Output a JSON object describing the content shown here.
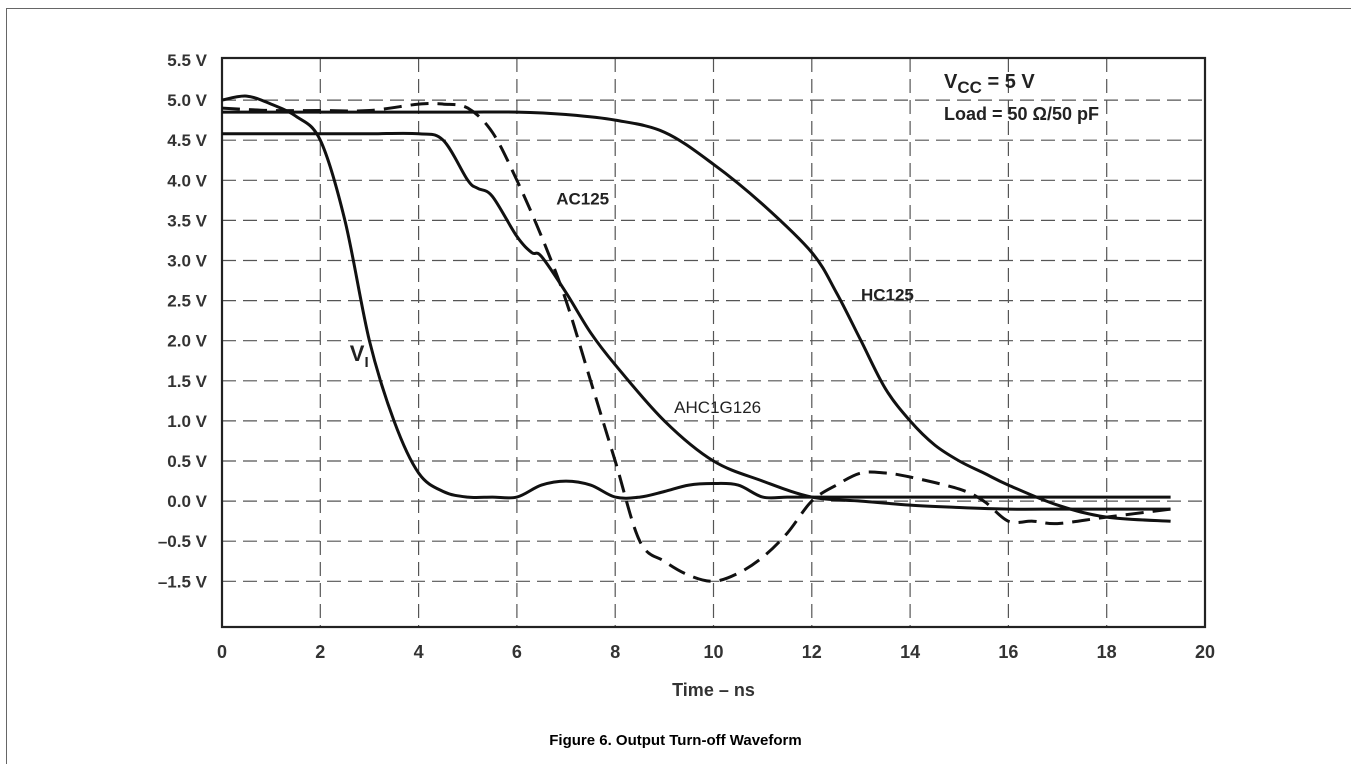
{
  "caption": "Figure 6. Output Turn-off Waveform",
  "chart_data": {
    "type": "line",
    "xlabel": "Time – ns",
    "ylabel": "",
    "xlim": [
      0,
      20
    ],
    "x_ticks": [
      "0",
      "2",
      "4",
      "6",
      "8",
      "10",
      "12",
      "14",
      "16",
      "18",
      "20"
    ],
    "y_ticks": [
      "5.5 V",
      "5.0 V",
      "4.5 V",
      "4.0 V",
      "3.5 V",
      "3.0 V",
      "2.5 V",
      "2.0 V",
      "1.5 V",
      "1.0 V",
      "0.5 V",
      "0.0 V",
      "–0.5 V",
      "–1.5 V"
    ],
    "y_tick_values": [
      5.5,
      5.0,
      4.5,
      4.0,
      3.5,
      3.0,
      2.5,
      2.0,
      1.5,
      1.0,
      0.5,
      0.0,
      -0.5,
      -1.5
    ],
    "grid": true,
    "conditions": {
      "vcc_prefix": "V",
      "vcc_sub": "CC",
      "vcc_suffix": " = 5 V",
      "load": "Load = 50 Ω/50 pF"
    },
    "series": [
      {
        "name": "VI",
        "label_main": "V",
        "label_sub": "I",
        "style": "solid",
        "x": [
          0,
          0.5,
          1.0,
          1.5,
          2.0,
          2.5,
          3.0,
          3.5,
          4.0,
          4.5,
          5.0,
          5.5,
          6.0,
          6.5,
          7.0,
          7.5,
          8.0,
          8.5,
          9.0,
          9.5,
          10.0,
          10.5,
          11.0,
          11.5,
          12.0,
          13.0,
          14.0,
          15.0,
          16.0,
          17.0,
          18.0,
          19.3
        ],
        "y": [
          5.0,
          5.05,
          4.95,
          4.8,
          4.5,
          3.5,
          2.0,
          1.0,
          0.35,
          0.12,
          0.05,
          0.05,
          0.05,
          0.2,
          0.25,
          0.2,
          0.05,
          0.05,
          0.12,
          0.2,
          0.22,
          0.2,
          0.05,
          0.05,
          0.05,
          0.05,
          0.05,
          0.05,
          0.05,
          0.05,
          0.05,
          0.05
        ]
      },
      {
        "name": "AC125",
        "style": "dashed",
        "x": [
          0,
          1.0,
          2.0,
          3.0,
          4.0,
          4.5,
          5.0,
          5.5,
          6.0,
          6.5,
          7.0,
          7.5,
          8.0,
          8.5,
          9.0,
          9.5,
          10.0,
          10.5,
          11.0,
          11.5,
          12.0,
          12.5,
          13.0,
          13.5,
          14.0,
          15.0,
          15.5,
          16.0,
          16.5,
          17.0,
          18.0,
          19.3
        ],
        "y": [
          4.9,
          4.87,
          4.87,
          4.87,
          4.95,
          4.95,
          4.9,
          4.6,
          4.0,
          3.3,
          2.5,
          1.5,
          0.5,
          -0.5,
          -1.0,
          -1.35,
          -1.5,
          -1.3,
          -0.9,
          -0.4,
          0.0,
          0.2,
          0.35,
          0.35,
          0.3,
          0.15,
          0.0,
          -0.25,
          -0.25,
          -0.28,
          -0.2,
          -0.1
        ]
      },
      {
        "name": "AHC1G126",
        "style": "solid",
        "x": [
          0,
          1.0,
          2.0,
          3.0,
          4.0,
          4.5,
          5.0,
          5.2,
          5.5,
          6.0,
          6.3,
          6.5,
          7.0,
          7.5,
          8.0,
          9.0,
          10.0,
          11.0,
          12.0,
          13.0,
          14.0,
          15.0,
          16.0,
          17.0,
          18.0,
          19.3
        ],
        "y": [
          4.58,
          4.58,
          4.58,
          4.58,
          4.58,
          4.5,
          4.0,
          3.9,
          3.8,
          3.3,
          3.1,
          3.05,
          2.6,
          2.1,
          1.7,
          1.0,
          0.5,
          0.25,
          0.05,
          0.0,
          -0.05,
          -0.08,
          -0.1,
          -0.1,
          -0.1,
          -0.1
        ]
      },
      {
        "name": "HC125",
        "style": "solid",
        "x": [
          0,
          1.0,
          2.0,
          3.0,
          4.0,
          5.0,
          6.0,
          7.0,
          8.0,
          9.0,
          10.0,
          11.0,
          12.0,
          12.5,
          13.0,
          13.5,
          14.0,
          14.5,
          15.0,
          15.5,
          16.0,
          17.0,
          18.0,
          19.3
        ],
        "y": [
          4.85,
          4.85,
          4.85,
          4.85,
          4.85,
          4.85,
          4.85,
          4.82,
          4.75,
          4.6,
          4.2,
          3.7,
          3.1,
          2.6,
          2.0,
          1.4,
          1.0,
          0.7,
          0.5,
          0.35,
          0.2,
          -0.05,
          -0.2,
          -0.25
        ]
      }
    ]
  }
}
